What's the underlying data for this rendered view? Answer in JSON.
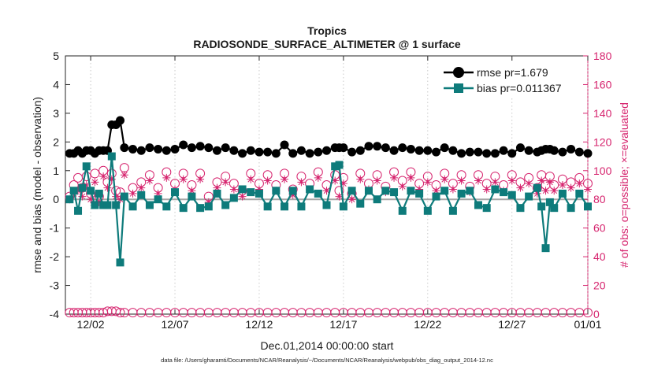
{
  "chart_data": {
    "type": "line",
    "title": "Tropics",
    "subtitle": "RADIOSONDE_SURFACE_ALTIMETER @ 1 surface",
    "xlabel": "Dec.01,2014 00:00:00 start",
    "ylabel": "rmse and bias (model - observation)",
    "ylabel_right": "# of obs: o=possible; ×=evaluated",
    "xlim": [
      0,
      31
    ],
    "ylim": [
      -4,
      5
    ],
    "ylim_right": [
      0,
      180
    ],
    "x_ticks": [
      1.5,
      6.5,
      11.5,
      16.5,
      21.5,
      26.5,
      31
    ],
    "x_tick_labels": [
      "12/02",
      "12/07",
      "12/12",
      "12/17",
      "12/22",
      "12/27",
      "01/01"
    ],
    "y_ticks": [
      -4,
      -3,
      -2,
      -1,
      0,
      1,
      2,
      3,
      4,
      5
    ],
    "y_ticks_right": [
      0,
      20,
      40,
      60,
      80,
      100,
      120,
      140,
      160,
      180
    ],
    "zero_line": 0,
    "footnote": "data file: /Users/gharamti/Documents/NCAR/Reanalysis/~/Documents/NCAR/Reanalysis/webpub/obs_diag_output_2014-12.nc",
    "series": [
      {
        "name": "rmse pr=1.679",
        "axis": "left",
        "color": "#000000",
        "marker": "circle",
        "x": [
          0.25,
          0.5,
          0.75,
          1,
          1.25,
          1.5,
          1.75,
          2,
          2.25,
          2.5,
          2.75,
          3,
          3.25,
          3.5,
          4,
          4.5,
          5,
          5.5,
          6,
          6.5,
          7,
          7.5,
          8,
          8.5,
          9,
          9.5,
          10,
          10.5,
          11,
          11.5,
          12,
          12.5,
          13,
          13.5,
          14,
          14.5,
          15,
          15.5,
          16,
          16.25,
          16.5,
          17,
          17.5,
          18,
          18.5,
          19,
          19.5,
          20,
          20.5,
          21,
          21.5,
          22,
          22.5,
          23,
          23.5,
          24,
          24.5,
          25,
          25.5,
          26,
          26.5,
          27,
          27.5,
          28,
          28.25,
          28.5,
          28.75,
          29,
          29.5,
          30,
          30.5,
          31
        ],
        "values": [
          1.6,
          1.6,
          1.7,
          1.6,
          1.7,
          1.7,
          1.6,
          1.7,
          1.7,
          1.7,
          2.6,
          2.6,
          2.75,
          1.8,
          1.75,
          1.7,
          1.8,
          1.75,
          1.7,
          1.75,
          1.9,
          1.8,
          1.85,
          1.8,
          1.7,
          1.8,
          1.7,
          1.6,
          1.7,
          1.65,
          1.65,
          1.6,
          1.9,
          1.6,
          1.7,
          1.6,
          1.65,
          1.7,
          1.8,
          1.8,
          1.8,
          1.65,
          1.7,
          1.85,
          1.85,
          1.8,
          1.7,
          1.8,
          1.75,
          1.7,
          1.7,
          1.65,
          1.8,
          1.7,
          1.6,
          1.65,
          1.65,
          1.6,
          1.6,
          1.7,
          1.6,
          1.8,
          1.7,
          1.65,
          1.7,
          1.75,
          1.75,
          1.7,
          1.65,
          1.75,
          1.65,
          1.6
        ]
      },
      {
        "name": "bias pr=0.011367",
        "axis": "left",
        "color": "#0e7b7b",
        "marker": "square",
        "x": [
          0.25,
          0.5,
          0.75,
          1,
          1.25,
          1.5,
          1.75,
          2,
          2.25,
          2.5,
          2.75,
          3,
          3.25,
          3.5,
          4,
          4.5,
          5,
          5.5,
          6,
          6.5,
          7,
          7.5,
          8,
          8.5,
          9,
          9.5,
          10,
          10.5,
          11,
          11.5,
          12,
          12.5,
          13,
          13.5,
          14,
          14.5,
          15,
          15.5,
          16,
          16.25,
          16.5,
          17,
          17.5,
          18,
          18.5,
          19,
          19.5,
          20,
          20.5,
          21,
          21.5,
          22,
          22.5,
          23,
          23.5,
          24,
          24.5,
          25,
          25.5,
          26,
          26.5,
          27,
          27.5,
          28,
          28.25,
          28.5,
          28.75,
          29,
          29.5,
          30,
          30.5,
          31
        ],
        "values": [
          0.0,
          0.3,
          -0.4,
          0.4,
          1.15,
          0.3,
          -0.2,
          0.2,
          -0.2,
          -0.2,
          1.5,
          -0.2,
          -2.2,
          0.1,
          -0.25,
          0.15,
          -0.2,
          0.0,
          -0.25,
          0.25,
          -0.3,
          0.1,
          -0.3,
          -0.25,
          0.2,
          -0.2,
          0.05,
          0.35,
          0.25,
          0.2,
          -0.25,
          0.3,
          -0.25,
          0.3,
          -0.25,
          0.35,
          0.2,
          -0.2,
          1.15,
          1.2,
          -0.25,
          0.3,
          -0.15,
          0.3,
          0.0,
          0.3,
          0.25,
          -0.4,
          0.3,
          0.2,
          -0.4,
          0.1,
          0.3,
          -0.4,
          0.2,
          0.3,
          -0.2,
          -0.3,
          0.35,
          0.25,
          0.15,
          -0.3,
          0.1,
          0.4,
          -0.25,
          -1.7,
          -0.1,
          -0.3,
          0.2,
          -0.3,
          0.2,
          -0.25
        ]
      },
      {
        "name": "possible obs (o)",
        "axis": "right",
        "color": "#d6246e",
        "marker": "open-circle",
        "x": [
          0.25,
          0.5,
          0.75,
          1,
          1.25,
          1.5,
          1.75,
          2,
          2.25,
          2.5,
          2.75,
          3,
          3.25,
          3.5,
          4,
          4.5,
          5,
          5.5,
          6,
          6.5,
          7,
          7.5,
          8,
          8.5,
          9,
          9.5,
          10,
          10.5,
          11,
          11.5,
          12,
          12.5,
          13,
          13.5,
          14,
          14.5,
          15,
          15.5,
          16,
          16.25,
          16.5,
          17,
          17.5,
          18,
          18.5,
          19,
          19.5,
          20,
          20.5,
          21,
          21.5,
          22,
          22.5,
          23,
          23.5,
          24,
          24.5,
          25,
          25.5,
          26,
          26.5,
          27,
          27.5,
          28,
          28.25,
          28.5,
          28.75,
          29,
          29.5,
          30,
          30.5,
          31
        ],
        "values": [
          82,
          90,
          95,
          88,
          96,
          84,
          98,
          82,
          100,
          92,
          98,
          86,
          85,
          102,
          88,
          92,
          97,
          88,
          99,
          91,
          98,
          90,
          98,
          82,
          92,
          96,
          91,
          86,
          98,
          91,
          97,
          90,
          98,
          87,
          96,
          91,
          99,
          90,
          97,
          86,
          95,
          84,
          98,
          91,
          97,
          89,
          99,
          93,
          99,
          91,
          96,
          90,
          98,
          91,
          97,
          89,
          97,
          91,
          96,
          90,
          97,
          92,
          95,
          88,
          97,
          90,
          96,
          90,
          94,
          92,
          95,
          91
        ]
      },
      {
        "name": "evaluated obs (×)",
        "axis": "right",
        "color": "#d6246e",
        "marker": "asterisk",
        "x": [
          0.25,
          0.5,
          0.75,
          1,
          1.25,
          1.5,
          1.75,
          2,
          2.25,
          2.5,
          2.75,
          3,
          3.25,
          3.5,
          4,
          4.5,
          5,
          5.5,
          6,
          6.5,
          7,
          7.5,
          8,
          8.5,
          9,
          9.5,
          10,
          10.5,
          11,
          11.5,
          12,
          12.5,
          13,
          13.5,
          14,
          14.5,
          15,
          15.5,
          16,
          16.25,
          16.5,
          17,
          17.5,
          18,
          18.5,
          19,
          19.5,
          20,
          20.5,
          21,
          21.5,
          22,
          22.5,
          23,
          23.5,
          24,
          24.5,
          25,
          25.5,
          26,
          26.5,
          27,
          27.5,
          28,
          28.25,
          28.5,
          28.75,
          29,
          29.5,
          30,
          30.5,
          31
        ],
        "values": [
          80,
          84,
          86,
          82,
          90,
          80,
          92,
          78,
          96,
          88,
          94,
          82,
          80,
          97,
          84,
          88,
          93,
          84,
          95,
          87,
          94,
          86,
          94,
          78,
          88,
          92,
          87,
          82,
          94,
          87,
          93,
          86,
          94,
          83,
          92,
          87,
          95,
          86,
          93,
          82,
          91,
          80,
          94,
          87,
          93,
          85,
          95,
          89,
          95,
          87,
          92,
          86,
          94,
          87,
          93,
          85,
          93,
          87,
          92,
          86,
          93,
          88,
          91,
          84,
          93,
          86,
          92,
          86,
          90,
          88,
          91,
          87
        ]
      },
      {
        "name": "possible obs at surface",
        "axis": "right",
        "color": "#d6246e",
        "marker": "open-circle",
        "x": [
          0.25,
          0.5,
          0.75,
          1,
          1.25,
          1.5,
          1.75,
          2,
          2.25,
          2.5,
          2.75,
          3,
          3.25,
          3.5,
          4,
          4.5,
          5,
          5.5,
          6,
          6.5,
          7,
          7.5,
          8,
          8.5,
          9,
          9.5,
          10,
          10.5,
          11,
          11.5,
          12,
          12.5,
          13,
          13.5,
          14,
          14.5,
          15,
          15.5,
          16,
          16.5,
          17,
          17.5,
          18,
          18.5,
          19,
          19.5,
          20,
          20.5,
          21,
          21.5,
          22,
          22.5,
          23,
          23.5,
          24,
          24.5,
          25,
          25.5,
          26,
          26.5,
          27,
          27.5,
          28,
          28.5,
          29,
          29.5,
          30,
          30.5,
          31
        ],
        "values": [
          1,
          1,
          1,
          1,
          1,
          1,
          1,
          1,
          1,
          2,
          2,
          2,
          1,
          1,
          1,
          1,
          1,
          1,
          1,
          1,
          1,
          1,
          1,
          1,
          1,
          1,
          1,
          1,
          1,
          1,
          1,
          1,
          1,
          1,
          1,
          1,
          1,
          1,
          1,
          1,
          1,
          1,
          1,
          1,
          1,
          1,
          1,
          1,
          1,
          1,
          1,
          1,
          1,
          1,
          1,
          1,
          1,
          1,
          1,
          1,
          1,
          1,
          1,
          1,
          1,
          1,
          1,
          1,
          1
        ]
      }
    ]
  }
}
